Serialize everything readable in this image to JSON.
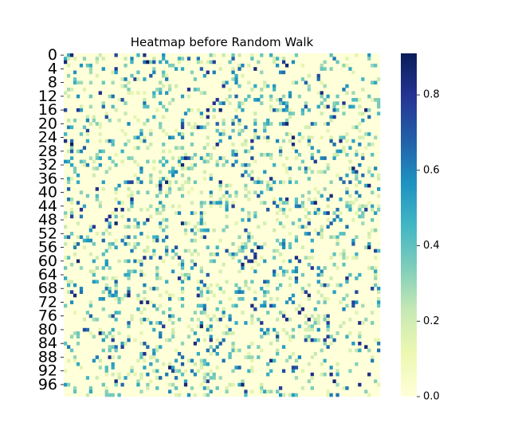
{
  "chart_data": {
    "type": "heatmap",
    "title": "Heatmap before Random Walk",
    "rows": 100,
    "cols": 100,
    "y_tick_labels": [
      "0",
      "4",
      "8",
      "12",
      "16",
      "20",
      "24",
      "28",
      "32",
      "36",
      "40",
      "44",
      "48",
      "52",
      "56",
      "60",
      "64",
      "68",
      "72",
      "76",
      "80",
      "84",
      "88",
      "92",
      "96"
    ],
    "x_tick_labels": [],
    "colorbar": {
      "min": 0.0,
      "max": 0.91,
      "ticks": [
        0.0,
        0.2,
        0.4,
        0.6,
        0.8
      ],
      "tick_labels": [
        "0.0",
        "0.2",
        "0.4",
        "0.6",
        "0.8"
      ]
    },
    "colormap": "YlGnBu",
    "colormap_stops": [
      "#ffffd9",
      "#edf8b1",
      "#c7e9b4",
      "#7fcdbb",
      "#41b6c4",
      "#1d91c0",
      "#225ea8",
      "#253494",
      "#081d58"
    ],
    "sparsity": 0.8,
    "grid": false
  }
}
